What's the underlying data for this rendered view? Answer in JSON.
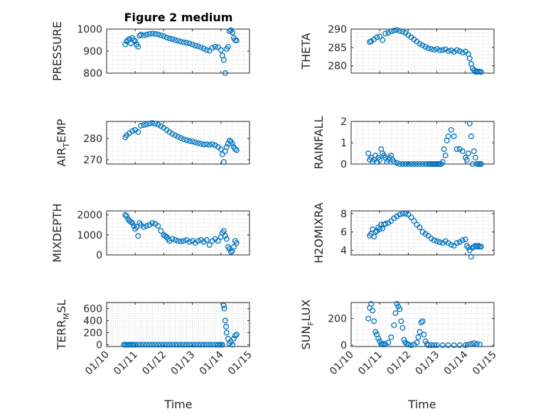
{
  "chart_data": {
    "type": "scatter",
    "title": "Figure 2 medium",
    "xlabel": "Time",
    "x_ticks": [
      "01/10",
      "01/11",
      "01/12",
      "01/13",
      "01/14",
      "01/15"
    ],
    "xlim": [
      0,
      5
    ],
    "marker_color": "#0072BD",
    "grid": true,
    "subplots": [
      {
        "id": "pressure",
        "ylabel": "PRESSURE",
        "ylabel_sub": null,
        "ylim": [
          800,
          1000
        ],
        "yticks": [
          "800",
          "900",
          "1000"
        ],
        "ytick_values": [
          800,
          900,
          1000
        ],
        "x": [
          0.65,
          0.7,
          0.75,
          0.8,
          0.85,
          0.9,
          0.95,
          1.0,
          1.05,
          1.1,
          1.15,
          1.2,
          1.3,
          1.4,
          1.5,
          1.6,
          1.7,
          1.8,
          1.9,
          2.0,
          2.1,
          2.2,
          2.3,
          2.4,
          2.5,
          2.6,
          2.7,
          2.8,
          2.9,
          3.0,
          3.1,
          3.2,
          3.3,
          3.4,
          3.5,
          3.6,
          3.7,
          3.8,
          3.9,
          4.0,
          4.05,
          4.1,
          4.15,
          4.2,
          4.25,
          4.3,
          4.35,
          4.4,
          4.45,
          4.5,
          4.55
        ],
        "y": [
          930,
          945,
          950,
          955,
          935,
          960,
          950,
          945,
          930,
          920,
          970,
          975,
          972,
          975,
          978,
          980,
          978,
          976,
          972,
          968,
          962,
          958,
          955,
          950,
          947,
          943,
          940,
          938,
          935,
          930,
          925,
          922,
          918,
          912,
          905,
          902,
          915,
          920,
          918,
          905,
          880,
          860,
          800,
          910,
          920,
          990,
          995,
          985,
          960,
          950,
          948
        ]
      },
      {
        "id": "theta",
        "ylabel": "THETA",
        "ylabel_sub": null,
        "ylim": [
          278,
          290
        ],
        "yticks": [
          "280",
          "285",
          "290"
        ],
        "ytick_values": [
          280,
          285,
          290
        ],
        "x": [
          0.65,
          0.7,
          0.8,
          0.9,
          1.0,
          1.1,
          1.2,
          1.3,
          1.4,
          1.5,
          1.6,
          1.7,
          1.8,
          1.9,
          2.0,
          2.1,
          2.2,
          2.3,
          2.4,
          2.5,
          2.6,
          2.7,
          2.8,
          2.9,
          3.0,
          3.1,
          3.2,
          3.3,
          3.4,
          3.5,
          3.6,
          3.7,
          3.8,
          3.9,
          4.0,
          4.1,
          4.15,
          4.2,
          4.25,
          4.3,
          4.35,
          4.4,
          4.45,
          4.5,
          4.55
        ],
        "y": [
          286.5,
          286.7,
          287.2,
          287.8,
          288.0,
          287.0,
          288.8,
          289.0,
          289.4,
          289.6,
          289.8,
          289.5,
          289.3,
          289.0,
          288.4,
          287.8,
          287.2,
          286.6,
          286.0,
          285.6,
          285.2,
          284.8,
          284.6,
          284.4,
          284.6,
          284.2,
          284.3,
          284.5,
          284.0,
          284.2,
          283.8,
          284.3,
          284.0,
          283.6,
          283.9,
          283.2,
          282.0,
          280.5,
          279.3,
          278.8,
          278.4,
          278.3,
          278.5,
          278.4,
          278.3
        ]
      },
      {
        "id": "air_temp",
        "ylabel": "AIR",
        "ylabel_sub": "T",
        "ylabel_suffix": "EMP",
        "ylim": [
          268,
          288
        ],
        "yticks": [
          "270",
          "280"
        ],
        "ytick_values": [
          270,
          280
        ],
        "x": [
          0.65,
          0.7,
          0.8,
          0.9,
          1.0,
          1.1,
          1.2,
          1.3,
          1.4,
          1.5,
          1.6,
          1.7,
          1.8,
          1.9,
          2.0,
          2.1,
          2.2,
          2.3,
          2.4,
          2.5,
          2.6,
          2.7,
          2.8,
          2.9,
          3.0,
          3.1,
          3.2,
          3.3,
          3.4,
          3.5,
          3.6,
          3.7,
          3.8,
          3.9,
          4.0,
          4.05,
          4.1,
          4.15,
          4.2,
          4.25,
          4.3,
          4.35,
          4.4,
          4.45,
          4.5,
          4.55
        ],
        "y": [
          280.5,
          281.5,
          282.5,
          283.5,
          284.0,
          283.0,
          286.0,
          286.3,
          286.6,
          287.0,
          287.3,
          287.0,
          286.5,
          285.8,
          285.0,
          284.0,
          283.0,
          282.2,
          281.5,
          280.8,
          280.2,
          279.6,
          279.2,
          278.8,
          278.6,
          278.2,
          277.8,
          277.5,
          277.2,
          277.3,
          277.0,
          277.3,
          276.8,
          276.0,
          275.0,
          272.5,
          269.0,
          274.0,
          276.0,
          277.5,
          279.0,
          278.5,
          277.5,
          276.0,
          275.0,
          274.5
        ]
      },
      {
        "id": "rainfall",
        "ylabel": "RAINFALL",
        "ylabel_sub": null,
        "ylim": [
          0,
          2
        ],
        "yticks": [
          "0",
          "1",
          "2"
        ],
        "ytick_values": [
          0,
          1,
          2
        ],
        "x": [
          0.6,
          0.65,
          0.7,
          0.75,
          0.8,
          0.85,
          0.9,
          0.95,
          1.0,
          1.05,
          1.1,
          1.15,
          1.2,
          1.25,
          1.3,
          1.35,
          1.4,
          1.45,
          1.5,
          1.6,
          1.7,
          1.8,
          1.9,
          2.0,
          2.1,
          2.2,
          2.3,
          2.4,
          2.5,
          2.6,
          2.7,
          2.75,
          2.8,
          2.85,
          2.9,
          2.95,
          3.0,
          3.05,
          3.1,
          3.15,
          3.2,
          3.25,
          3.3,
          3.35,
          3.4,
          3.5,
          3.6,
          3.7,
          3.8,
          3.9,
          4.0,
          4.05,
          4.1,
          4.15,
          4.2,
          4.25,
          4.3,
          4.35,
          4.4,
          4.45,
          4.5,
          4.55
        ],
        "y": [
          0.5,
          0.2,
          0.3,
          0.1,
          0.2,
          0.4,
          0.1,
          0.3,
          0.2,
          0.7,
          0.5,
          0.4,
          0.3,
          0.1,
          0.2,
          0.3,
          0.4,
          0.2,
          0.1,
          0.05,
          0,
          0,
          0,
          0,
          0,
          0,
          0,
          0,
          0,
          0,
          0,
          0,
          0,
          0,
          0,
          0,
          0,
          0,
          0,
          0,
          0.1,
          0.7,
          0.4,
          1.1,
          1.3,
          1.6,
          1.3,
          0.7,
          0.7,
          0.6,
          0.3,
          0.2,
          0.5,
          1.9,
          1.3,
          0,
          0.6,
          0.3,
          0,
          0,
          0,
          0
        ]
      },
      {
        "id": "mixdepth",
        "ylabel": "MIXDEPTH",
        "ylabel_sub": null,
        "ylim": [
          0,
          2200
        ],
        "yticks": [
          "0",
          "1000",
          "2000"
        ],
        "ytick_values": [
          0,
          1000,
          2000
        ],
        "x": [
          0.65,
          0.7,
          0.75,
          0.8,
          0.85,
          0.9,
          0.95,
          1.0,
          1.05,
          1.1,
          1.15,
          1.2,
          1.3,
          1.4,
          1.5,
          1.6,
          1.7,
          1.8,
          1.9,
          2.0,
          2.05,
          2.1,
          2.15,
          2.2,
          2.3,
          2.4,
          2.5,
          2.6,
          2.7,
          2.8,
          2.9,
          3.0,
          3.1,
          3.2,
          3.3,
          3.4,
          3.5,
          3.6,
          3.7,
          3.8,
          3.9,
          4.0,
          4.05,
          4.1,
          4.15,
          4.2,
          4.25,
          4.3,
          4.35,
          4.4,
          4.45,
          4.5,
          4.55
        ],
        "y": [
          2000,
          1950,
          1800,
          1700,
          1650,
          1600,
          1450,
          1300,
          1400,
          950,
          1600,
          1500,
          1400,
          1450,
          1500,
          1600,
          1550,
          1450,
          1200,
          1000,
          950,
          900,
          800,
          700,
          800,
          750,
          700,
          680,
          700,
          750,
          650,
          700,
          600,
          700,
          750,
          650,
          750,
          500,
          700,
          800,
          700,
          900,
          1100,
          1200,
          950,
          800,
          400,
          300,
          150,
          200,
          400,
          700,
          600
        ]
      },
      {
        "id": "h2omixra",
        "ylabel": "H2OMIXRA",
        "ylabel_sub": null,
        "ylim": [
          3.5,
          8.3
        ],
        "yticks": [
          "4",
          "6",
          "8"
        ],
        "ytick_values": [
          4,
          6,
          8
        ],
        "x": [
          0.65,
          0.7,
          0.75,
          0.8,
          0.85,
          0.9,
          0.95,
          1.0,
          1.05,
          1.1,
          1.15,
          1.2,
          1.3,
          1.4,
          1.5,
          1.6,
          1.7,
          1.8,
          1.9,
          2.0,
          2.1,
          2.2,
          2.3,
          2.4,
          2.5,
          2.6,
          2.7,
          2.8,
          2.9,
          3.0,
          3.1,
          3.2,
          3.3,
          3.4,
          3.5,
          3.6,
          3.7,
          3.8,
          3.9,
          4.0,
          4.05,
          4.1,
          4.15,
          4.2,
          4.25,
          4.3,
          4.35,
          4.4,
          4.45,
          4.5,
          4.55
        ],
        "y": [
          5.6,
          5.8,
          6.3,
          5.5,
          6.0,
          6.1,
          6.5,
          6.3,
          6.8,
          6.4,
          6.8,
          6.9,
          7.0,
          7.2,
          7.5,
          7.7,
          7.9,
          8.0,
          8.0,
          7.9,
          7.6,
          7.2,
          6.8,
          6.5,
          6.0,
          5.8,
          5.6,
          5.3,
          5.1,
          5.0,
          4.9,
          4.8,
          5.0,
          4.8,
          4.6,
          4.5,
          4.8,
          4.9,
          5.1,
          5.2,
          4.5,
          4.3,
          4.0,
          3.3,
          4.3,
          4.4,
          4.5,
          4.4,
          4.5,
          4.4,
          4.4
        ]
      },
      {
        "id": "terr_msl",
        "ylabel": "TERR",
        "ylabel_sub": "M",
        "ylabel_suffix": "SL",
        "ylim": [
          -30,
          700
        ],
        "yticks": [
          "0",
          "200",
          "400",
          "600"
        ],
        "ytick_values": [
          0,
          200,
          400,
          600
        ],
        "x": [
          0.6,
          0.65,
          0.7,
          0.75,
          0.8,
          0.85,
          0.9,
          0.95,
          1.0,
          1.1,
          1.2,
          1.3,
          1.4,
          1.5,
          1.6,
          1.7,
          1.8,
          1.9,
          2.0,
          2.1,
          2.2,
          2.3,
          2.4,
          2.5,
          2.6,
          2.7,
          2.8,
          2.9,
          3.0,
          3.1,
          3.2,
          3.3,
          3.4,
          3.5,
          3.6,
          3.7,
          3.8,
          3.9,
          3.95,
          4.0,
          4.05,
          4.1,
          4.12,
          4.15,
          4.18,
          4.2,
          4.25,
          4.3,
          4.35,
          4.4,
          4.45,
          4.5,
          4.55
        ],
        "y": [
          0,
          0,
          0,
          0,
          0,
          0,
          0,
          0,
          0,
          0,
          0,
          0,
          0,
          0,
          0,
          0,
          0,
          0,
          0,
          0,
          0,
          0,
          0,
          0,
          0,
          0,
          0,
          0,
          0,
          0,
          0,
          0,
          0,
          0,
          0,
          0,
          0,
          0,
          0,
          0,
          0,
          650,
          600,
          400,
          300,
          200,
          100,
          20,
          50,
          0,
          100,
          150,
          170
        ]
      },
      {
        "id": "sun_flux",
        "ylabel": "SUN",
        "ylabel_sub": "F",
        "ylabel_suffix": "LUX",
        "ylim": [
          -10,
          320
        ],
        "yticks": [
          "0",
          "200"
        ],
        "ytick_values": [
          0,
          200
        ],
        "x": [
          0.6,
          0.65,
          0.7,
          0.75,
          0.8,
          0.85,
          0.9,
          0.95,
          1.0,
          1.05,
          1.1,
          1.15,
          1.2,
          1.3,
          1.4,
          1.5,
          1.55,
          1.6,
          1.65,
          1.7,
          1.75,
          1.8,
          1.85,
          1.9,
          1.95,
          2.0,
          2.1,
          2.2,
          2.3,
          2.35,
          2.4,
          2.45,
          2.5,
          2.55,
          2.6,
          2.65,
          2.7,
          2.8,
          2.9,
          3.0,
          3.2,
          3.4,
          3.6,
          3.8,
          4.0,
          4.1,
          4.2,
          4.3,
          4.4,
          4.5
        ],
        "y": [
          200,
          280,
          310,
          260,
          180,
          100,
          80,
          50,
          30,
          10,
          5,
          10,
          5,
          20,
          60,
          150,
          240,
          310,
          290,
          270,
          180,
          130,
          40,
          20,
          10,
          5,
          0,
          5,
          20,
          60,
          100,
          170,
          180,
          80,
          30,
          10,
          0,
          0,
          0,
          0,
          0,
          0,
          0,
          0,
          0,
          5,
          10,
          15,
          10,
          5
        ]
      }
    ]
  }
}
